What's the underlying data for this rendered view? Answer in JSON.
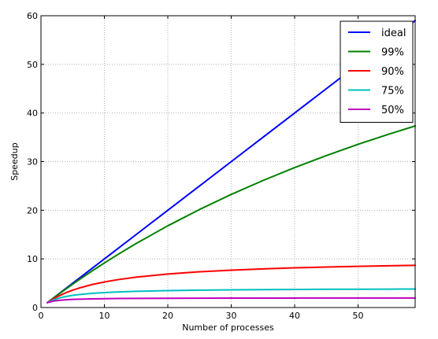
{
  "chart_data": {
    "type": "line",
    "title": "",
    "xlabel": "Number of processes",
    "ylabel": "Speedup",
    "xlim": [
      0,
      59
    ],
    "ylim": [
      0,
      60
    ],
    "xticks": [
      "0",
      "10",
      "20",
      "30",
      "40",
      "50"
    ],
    "yticks": [
      "0",
      "10",
      "20",
      "30",
      "40",
      "50",
      "60"
    ],
    "grid": true,
    "legend_position": "top-right",
    "x": [
      1,
      2,
      3,
      4,
      5,
      6,
      8,
      10,
      12,
      15,
      20,
      25,
      30,
      35,
      40,
      45,
      50,
      55,
      59
    ],
    "series": [
      {
        "name": "ideal",
        "color": "#0000ff",
        "values": [
          1,
          2,
          3,
          4,
          5,
          6,
          8,
          10,
          12,
          15,
          20,
          25,
          30,
          35,
          40,
          45,
          50,
          55,
          59
        ]
      },
      {
        "name": "99%",
        "color": "#008000",
        "values": [
          1.0,
          1.98,
          2.94,
          3.88,
          4.81,
          5.71,
          7.47,
          9.17,
          10.81,
          13.16,
          16.81,
          20.16,
          23.26,
          26.12,
          28.78,
          31.25,
          33.56,
          35.71,
          37.34
        ]
      },
      {
        "name": "90%",
        "color": "#ff0000",
        "values": [
          1.0,
          1.82,
          2.5,
          3.08,
          3.57,
          4.0,
          4.71,
          5.26,
          5.71,
          6.25,
          6.9,
          7.35,
          7.69,
          7.95,
          8.16,
          8.33,
          8.47,
          8.59,
          8.68
        ]
      },
      {
        "name": "75%",
        "color": "#00bfbf",
        "values": [
          1.0,
          1.6,
          2.0,
          2.29,
          2.5,
          2.67,
          2.91,
          3.08,
          3.2,
          3.33,
          3.48,
          3.57,
          3.64,
          3.68,
          3.72,
          3.75,
          3.77,
          3.79,
          3.81
        ]
      },
      {
        "name": "50%",
        "color": "#bf00bf",
        "values": [
          1.0,
          1.33,
          1.5,
          1.6,
          1.67,
          1.71,
          1.78,
          1.82,
          1.85,
          1.88,
          1.9,
          1.92,
          1.94,
          1.94,
          1.95,
          1.96,
          1.96,
          1.96,
          1.97
        ]
      }
    ]
  }
}
